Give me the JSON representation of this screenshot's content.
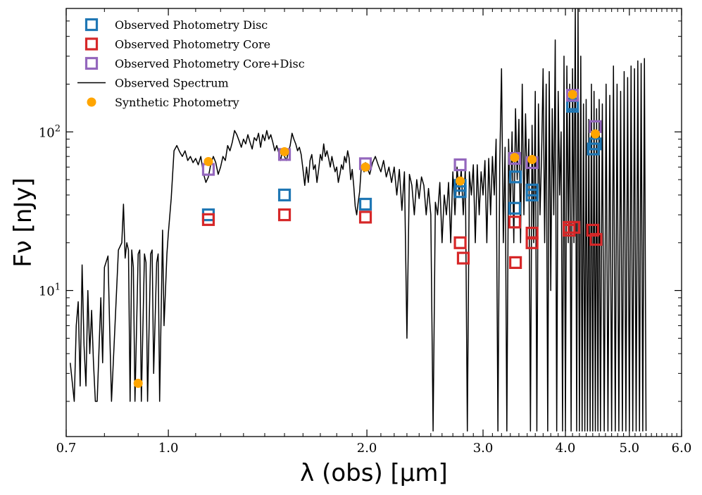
{
  "chart_data": {
    "type": "scatter",
    "title": "",
    "xlabel": "λ (obs) [μm]",
    "ylabel": "Fν [nJy]",
    "xscale": "log",
    "yscale": "log",
    "xlim": [
      0.7,
      6.0
    ],
    "ylim": [
      1.2,
      600
    ],
    "x_ticks": [
      {
        "value": 0.7,
        "label": "0.7"
      },
      {
        "value": 1.0,
        "label": "1.0"
      },
      {
        "value": 2.0,
        "label": "2.0"
      },
      {
        "value": 3.0,
        "label": "3.0"
      },
      {
        "value": 4.0,
        "label": "4.0"
      },
      {
        "value": 5.0,
        "label": "5.0"
      },
      {
        "value": 6.0,
        "label": "6.0"
      }
    ],
    "y_ticks": [
      {
        "value": 10,
        "base": "10",
        "exp": "1"
      },
      {
        "value": 100,
        "base": "10",
        "exp": "2"
      }
    ],
    "legend_position": "top-left",
    "legend": [
      {
        "key": "disc",
        "label": "Observed Photometry Disc",
        "marker": "square",
        "color": "#1f77b4"
      },
      {
        "key": "core",
        "label": "Observed Photometry Core",
        "marker": "square",
        "color": "#d62728"
      },
      {
        "key": "coredisc",
        "label": "Observed Photometry Core+Disc",
        "marker": "square",
        "color": "#9467bd"
      },
      {
        "key": "spectrum",
        "label": "Observed Spectrum",
        "marker": "line",
        "color": "#000000"
      },
      {
        "key": "synthetic",
        "label": "Synthetic Photometry",
        "marker": "circle",
        "color": "#ffa500"
      }
    ],
    "series": [
      {
        "name": "Observed Photometry Disc",
        "key": "disc",
        "color": "#1f77b4",
        "points": [
          [
            1.15,
            30
          ],
          [
            1.5,
            40
          ],
          [
            1.99,
            35
          ],
          [
            2.77,
            42
          ],
          [
            2.77,
            46
          ],
          [
            3.35,
            33
          ],
          [
            3.36,
            52
          ],
          [
            3.56,
            40
          ],
          [
            3.56,
            43
          ],
          [
            4.1,
            145
          ],
          [
            4.1,
            150
          ],
          [
            4.41,
            78
          ],
          [
            4.44,
            84
          ]
        ]
      },
      {
        "name": "Observed Photometry Core",
        "key": "core",
        "color": "#d62728",
        "points": [
          [
            1.15,
            28
          ],
          [
            1.5,
            30
          ],
          [
            1.99,
            29
          ],
          [
            2.77,
            20
          ],
          [
            2.8,
            16
          ],
          [
            3.35,
            27
          ],
          [
            3.36,
            15
          ],
          [
            3.56,
            20
          ],
          [
            3.56,
            23
          ],
          [
            4.05,
            24
          ],
          [
            4.05,
            25
          ],
          [
            4.12,
            25
          ],
          [
            4.4,
            24
          ],
          [
            4.45,
            21
          ]
        ]
      },
      {
        "name": "Observed Photometry Core+Disc",
        "key": "coredisc",
        "color": "#9467bd",
        "points": [
          [
            1.15,
            58
          ],
          [
            1.5,
            72
          ],
          [
            1.99,
            63
          ],
          [
            2.77,
            62
          ],
          [
            3.35,
            68
          ],
          [
            3.56,
            64
          ],
          [
            4.1,
            170
          ],
          [
            4.44,
            108
          ]
        ]
      },
      {
        "name": "Synthetic Photometry",
        "key": "synthetic",
        "color": "#ffa500",
        "points": [
          [
            0.9,
            2.6
          ],
          [
            1.15,
            65
          ],
          [
            1.5,
            75
          ],
          [
            1.99,
            60
          ],
          [
            2.77,
            49
          ],
          [
            3.35,
            69
          ],
          [
            3.56,
            67
          ],
          [
            4.1,
            172
          ],
          [
            4.44,
            97
          ]
        ]
      }
    ],
    "spectrum": {
      "name": "Observed Spectrum",
      "color": "#000000",
      "points": [
        [
          0.71,
          3.5
        ],
        [
          0.72,
          2.0
        ],
        [
          0.725,
          6.0
        ],
        [
          0.73,
          8.5
        ],
        [
          0.735,
          2.5
        ],
        [
          0.74,
          14.5
        ],
        [
          0.745,
          4.5
        ],
        [
          0.75,
          2.5
        ],
        [
          0.755,
          10
        ],
        [
          0.76,
          4.0
        ],
        [
          0.765,
          7.5
        ],
        [
          0.77,
          3.5
        ],
        [
          0.775,
          2.0
        ],
        [
          0.78,
          2.0
        ],
        [
          0.79,
          9.0
        ],
        [
          0.795,
          3.5
        ],
        [
          0.8,
          14
        ],
        [
          0.81,
          16.5
        ],
        [
          0.815,
          5.5
        ],
        [
          0.82,
          2.0
        ],
        [
          0.83,
          6.0
        ],
        [
          0.84,
          18
        ],
        [
          0.85,
          20
        ],
        [
          0.855,
          35
        ],
        [
          0.86,
          16
        ],
        [
          0.865,
          20
        ],
        [
          0.87,
          18
        ],
        [
          0.875,
          2.0
        ],
        [
          0.88,
          18
        ],
        [
          0.885,
          14
        ],
        [
          0.89,
          2.0
        ],
        [
          0.9,
          17
        ],
        [
          0.905,
          18
        ],
        [
          0.91,
          2.0
        ],
        [
          0.92,
          17
        ],
        [
          0.925,
          15
        ],
        [
          0.93,
          2.0
        ],
        [
          0.94,
          17
        ],
        [
          0.945,
          18
        ],
        [
          0.95,
          3.0
        ],
        [
          0.96,
          15
        ],
        [
          0.965,
          17
        ],
        [
          0.97,
          2.0
        ],
        [
          0.98,
          24
        ],
        [
          0.985,
          6.0
        ],
        [
          0.99,
          10
        ],
        [
          0.995,
          17
        ],
        [
          1.0,
          23
        ],
        [
          1.01,
          38
        ],
        [
          1.02,
          76
        ],
        [
          1.03,
          82
        ],
        [
          1.04,
          75
        ],
        [
          1.05,
          70
        ],
        [
          1.06,
          76
        ],
        [
          1.07,
          66
        ],
        [
          1.08,
          70
        ],
        [
          1.09,
          64
        ],
        [
          1.1,
          68
        ],
        [
          1.11,
          62
        ],
        [
          1.12,
          70
        ],
        [
          1.13,
          55
        ],
        [
          1.14,
          48
        ],
        [
          1.15,
          52
        ],
        [
          1.16,
          63
        ],
        [
          1.17,
          70
        ],
        [
          1.18,
          64
        ],
        [
          1.19,
          54
        ],
        [
          1.2,
          60
        ],
        [
          1.21,
          70
        ],
        [
          1.22,
          66
        ],
        [
          1.23,
          82
        ],
        [
          1.24,
          76
        ],
        [
          1.25,
          86
        ],
        [
          1.26,
          102
        ],
        [
          1.27,
          96
        ],
        [
          1.28,
          88
        ],
        [
          1.29,
          80
        ],
        [
          1.3,
          90
        ],
        [
          1.31,
          84
        ],
        [
          1.32,
          96
        ],
        [
          1.33,
          86
        ],
        [
          1.34,
          78
        ],
        [
          1.35,
          92
        ],
        [
          1.36,
          88
        ],
        [
          1.37,
          98
        ],
        [
          1.38,
          80
        ],
        [
          1.39,
          96
        ],
        [
          1.4,
          88
        ],
        [
          1.41,
          102
        ],
        [
          1.42,
          90
        ],
        [
          1.43,
          96
        ],
        [
          1.44,
          86
        ],
        [
          1.45,
          76
        ],
        [
          1.46,
          82
        ],
        [
          1.47,
          74
        ],
        [
          1.48,
          66
        ],
        [
          1.49,
          78
        ],
        [
          1.5,
          70
        ],
        [
          1.51,
          66
        ],
        [
          1.52,
          74
        ],
        [
          1.53,
          82
        ],
        [
          1.54,
          98
        ],
        [
          1.55,
          90
        ],
        [
          1.56,
          84
        ],
        [
          1.57,
          76
        ],
        [
          1.58,
          80
        ],
        [
          1.59,
          72
        ],
        [
          1.6,
          58
        ],
        [
          1.61,
          46
        ],
        [
          1.62,
          60
        ],
        [
          1.63,
          48
        ],
        [
          1.64,
          66
        ],
        [
          1.65,
          72
        ],
        [
          1.66,
          58
        ],
        [
          1.67,
          62
        ],
        [
          1.68,
          48
        ],
        [
          1.69,
          58
        ],
        [
          1.7,
          72
        ],
        [
          1.71,
          66
        ],
        [
          1.72,
          84
        ],
        [
          1.73,
          70
        ],
        [
          1.74,
          76
        ],
        [
          1.75,
          68
        ],
        [
          1.76,
          60
        ],
        [
          1.77,
          70
        ],
        [
          1.78,
          62
        ],
        [
          1.79,
          56
        ],
        [
          1.8,
          60
        ],
        [
          1.81,
          48
        ],
        [
          1.82,
          54
        ],
        [
          1.83,
          62
        ],
        [
          1.84,
          58
        ],
        [
          1.85,
          70
        ],
        [
          1.86,
          64
        ],
        [
          1.87,
          76
        ],
        [
          1.88,
          68
        ],
        [
          1.89,
          50
        ],
        [
          1.9,
          58
        ],
        [
          1.91,
          46
        ],
        [
          1.92,
          34
        ],
        [
          1.93,
          30
        ],
        [
          1.94,
          36
        ],
        [
          1.95,
          42
        ],
        [
          1.96,
          58
        ],
        [
          1.97,
          62
        ],
        [
          1.98,
          56
        ],
        [
          1.99,
          64
        ],
        [
          2.0,
          60
        ],
        [
          2.02,
          54
        ],
        [
          2.04,
          64
        ],
        [
          2.06,
          70
        ],
        [
          2.08,
          62
        ],
        [
          2.1,
          56
        ],
        [
          2.12,
          66
        ],
        [
          2.14,
          52
        ],
        [
          2.16,
          60
        ],
        [
          2.18,
          48
        ],
        [
          2.2,
          60
        ],
        [
          2.22,
          40
        ],
        [
          2.24,
          58
        ],
        [
          2.26,
          32
        ],
        [
          2.28,
          56
        ],
        [
          2.3,
          5.0
        ],
        [
          2.32,
          54
        ],
        [
          2.34,
          46
        ],
        [
          2.36,
          30
        ],
        [
          2.38,
          50
        ],
        [
          2.4,
          38
        ],
        [
          2.42,
          52
        ],
        [
          2.44,
          46
        ],
        [
          2.46,
          30
        ],
        [
          2.48,
          44
        ],
        [
          2.5,
          30
        ],
        [
          2.52,
          1.3
        ],
        [
          2.54,
          36
        ],
        [
          2.56,
          30
        ],
        [
          2.58,
          48
        ],
        [
          2.6,
          20
        ],
        [
          2.62,
          40
        ],
        [
          2.64,
          30
        ],
        [
          2.66,
          48
        ],
        [
          2.68,
          20
        ],
        [
          2.7,
          56
        ],
        [
          2.72,
          30
        ],
        [
          2.74,
          60
        ],
        [
          2.76,
          40
        ],
        [
          2.78,
          58
        ],
        [
          2.8,
          30
        ],
        [
          2.82,
          60
        ],
        [
          2.84,
          1.3
        ],
        [
          2.86,
          56
        ],
        [
          2.88,
          40
        ],
        [
          2.9,
          62
        ],
        [
          2.92,
          20
        ],
        [
          2.94,
          62
        ],
        [
          2.96,
          30
        ],
        [
          2.98,
          56
        ],
        [
          3.0,
          40
        ],
        [
          3.02,
          66
        ],
        [
          3.04,
          20
        ],
        [
          3.06,
          68
        ],
        [
          3.08,
          30
        ],
        [
          3.1,
          70
        ],
        [
          3.12,
          40
        ],
        [
          3.14,
          90
        ],
        [
          3.16,
          1.3
        ],
        [
          3.18,
          62
        ],
        [
          3.2,
          250
        ],
        [
          3.22,
          20
        ],
        [
          3.24,
          80
        ],
        [
          3.26,
          1.3
        ],
        [
          3.28,
          90
        ],
        [
          3.3,
          30
        ],
        [
          3.32,
          100
        ],
        [
          3.34,
          20
        ],
        [
          3.36,
          140
        ],
        [
          3.38,
          50
        ],
        [
          3.4,
          120
        ],
        [
          3.42,
          20
        ],
        [
          3.44,
          200
        ],
        [
          3.46,
          30
        ],
        [
          3.48,
          130
        ],
        [
          3.5,
          40
        ],
        [
          3.52,
          90
        ],
        [
          3.54,
          1.3
        ],
        [
          3.56,
          110
        ],
        [
          3.58,
          20
        ],
        [
          3.6,
          180
        ],
        [
          3.62,
          1.3
        ],
        [
          3.64,
          150
        ],
        [
          3.66,
          30
        ],
        [
          3.68,
          70
        ],
        [
          3.7,
          250
        ],
        [
          3.72,
          20
        ],
        [
          3.74,
          200
        ],
        [
          3.76,
          1.3
        ],
        [
          3.78,
          240
        ],
        [
          3.8,
          10
        ],
        [
          3.82,
          140
        ],
        [
          3.84,
          30
        ],
        [
          3.86,
          380
        ],
        [
          3.88,
          1.3
        ],
        [
          3.9,
          180
        ],
        [
          3.92,
          40
        ],
        [
          3.94,
          100
        ],
        [
          3.96,
          1.3
        ],
        [
          3.98,
          300
        ],
        [
          4.0,
          1.3
        ],
        [
          4.02,
          260
        ],
        [
          4.04,
          20
        ],
        [
          4.06,
          200
        ],
        [
          4.08,
          1.3
        ],
        [
          4.1,
          250
        ],
        [
          4.12,
          20
        ],
        [
          4.14,
          600
        ],
        [
          4.16,
          1.3
        ],
        [
          4.18,
          600
        ],
        [
          4.2,
          1.3
        ],
        [
          4.22,
          300
        ],
        [
          4.24,
          1.3
        ],
        [
          4.26,
          150
        ],
        [
          4.28,
          1.3
        ],
        [
          4.3,
          160
        ],
        [
          4.32,
          1.3
        ],
        [
          4.34,
          120
        ],
        [
          4.36,
          1.3
        ],
        [
          4.38,
          200
        ],
        [
          4.4,
          1.3
        ],
        [
          4.42,
          180
        ],
        [
          4.44,
          1.3
        ],
        [
          4.46,
          140
        ],
        [
          4.48,
          1.3
        ],
        [
          4.5,
          160
        ],
        [
          4.52,
          1.3
        ],
        [
          4.55,
          150
        ],
        [
          4.58,
          1.3
        ],
        [
          4.61,
          200
        ],
        [
          4.64,
          1.3
        ],
        [
          4.67,
          170
        ],
        [
          4.7,
          1.3
        ],
        [
          4.73,
          260
        ],
        [
          4.76,
          1.3
        ],
        [
          4.79,
          200
        ],
        [
          4.82,
          1.3
        ],
        [
          4.85,
          180
        ],
        [
          4.88,
          1.3
        ],
        [
          4.91,
          240
        ],
        [
          4.94,
          1.3
        ],
        [
          4.97,
          220
        ],
        [
          5.0,
          1.3
        ],
        [
          5.03,
          260
        ],
        [
          5.06,
          1.3
        ],
        [
          5.09,
          250
        ],
        [
          5.12,
          1.3
        ],
        [
          5.15,
          280
        ],
        [
          5.18,
          1.3
        ],
        [
          5.21,
          270
        ],
        [
          5.24,
          1.3
        ],
        [
          5.27,
          290
        ],
        [
          5.3,
          1.3
        ]
      ]
    }
  }
}
